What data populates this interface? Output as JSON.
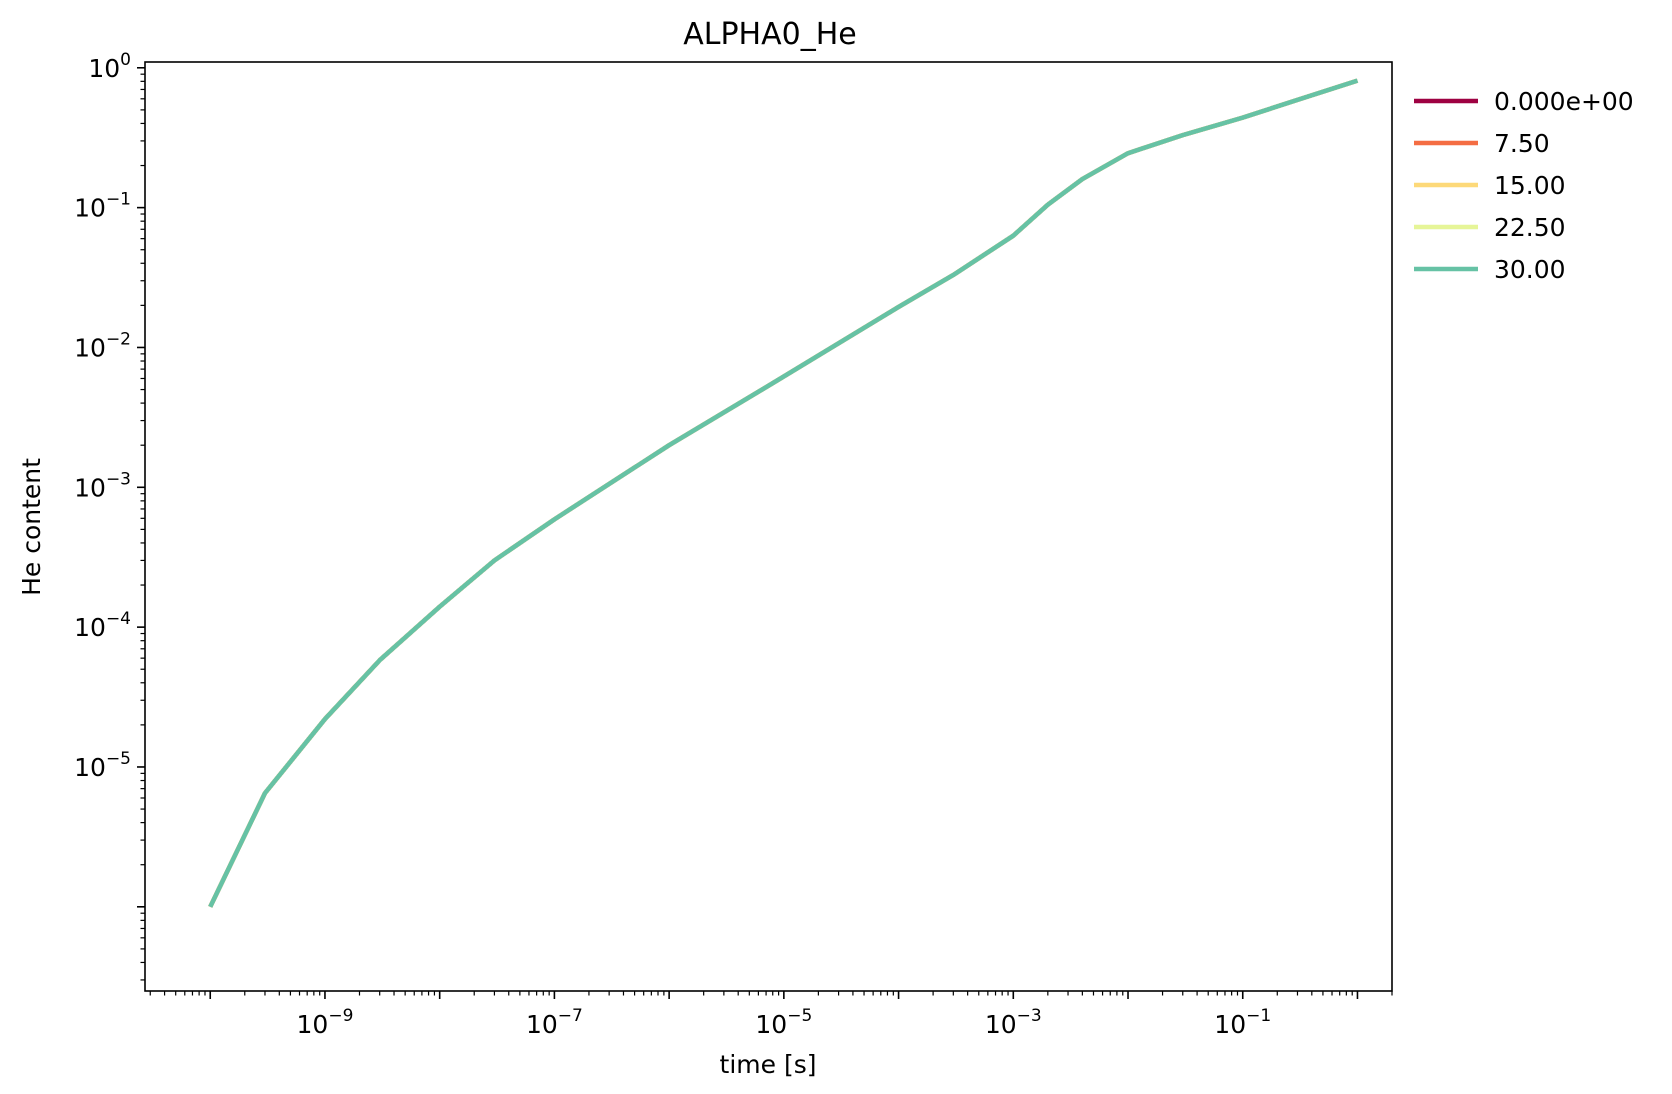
{
  "chart_data": {
    "type": "line",
    "title": "ALPHA0_He",
    "xlabel": "time [s]",
    "ylabel": "He content",
    "xscale": "log",
    "yscale": "log",
    "xlim": [
      2.7e-11,
      2.0
    ],
    "ylim": [
      2.5e-07,
      1.1
    ],
    "grid": false,
    "legend_position": "outside-right",
    "x_ticks": [
      {
        "value": 1e-09,
        "base": "10",
        "exp": "−9"
      },
      {
        "value": 1e-07,
        "base": "10",
        "exp": "−7"
      },
      {
        "value": 1e-05,
        "base": "10",
        "exp": "−5"
      },
      {
        "value": 0.001,
        "base": "10",
        "exp": "−3"
      },
      {
        "value": 0.1,
        "base": "10",
        "exp": "−1"
      }
    ],
    "y_ticks": [
      {
        "value": 1e-05,
        "base": "10",
        "exp": "−5"
      },
      {
        "value": 0.0001,
        "base": "10",
        "exp": "−4"
      },
      {
        "value": 0.001,
        "base": "10",
        "exp": "−3"
      },
      {
        "value": 0.01,
        "base": "10",
        "exp": "−2"
      },
      {
        "value": 0.1,
        "base": "10",
        "exp": "−1"
      },
      {
        "value": 1,
        "base": "10",
        "exp": "0"
      }
    ],
    "x": [
      1e-10,
      3e-10,
      1e-09,
      3e-09,
      1e-08,
      3e-08,
      1e-07,
      1e-06,
      1e-05,
      0.0001,
      0.0003,
      0.001,
      0.002,
      0.004,
      0.01,
      0.03,
      0.1,
      0.3,
      1.0
    ],
    "series": [
      {
        "name": "0.000e+00",
        "color": "#9e0142",
        "y": [
          1e-06,
          6.5e-06,
          2.2e-05,
          5.8e-05,
          0.00014,
          0.0003,
          0.00059,
          0.002,
          0.0062,
          0.0195,
          0.033,
          0.063,
          0.105,
          0.16,
          0.245,
          0.33,
          0.44,
          0.59,
          0.81
        ]
      },
      {
        "name": "7.50",
        "color": "#f46d43",
        "y": [
          1e-06,
          6.5e-06,
          2.2e-05,
          5.8e-05,
          0.00014,
          0.0003,
          0.00059,
          0.002,
          0.0062,
          0.0195,
          0.033,
          0.063,
          0.105,
          0.16,
          0.245,
          0.33,
          0.44,
          0.59,
          0.81
        ]
      },
      {
        "name": "15.00",
        "color": "#fdd979",
        "y": [
          1e-06,
          6.5e-06,
          2.2e-05,
          5.8e-05,
          0.00014,
          0.0003,
          0.00059,
          0.002,
          0.0062,
          0.0195,
          0.033,
          0.063,
          0.105,
          0.16,
          0.245,
          0.33,
          0.44,
          0.59,
          0.81
        ]
      },
      {
        "name": "22.50",
        "color": "#e6f598",
        "y": [
          1e-06,
          6.5e-06,
          2.2e-05,
          5.8e-05,
          0.00014,
          0.0003,
          0.00059,
          0.002,
          0.0062,
          0.0195,
          0.033,
          0.063,
          0.105,
          0.16,
          0.245,
          0.33,
          0.44,
          0.59,
          0.81
        ]
      },
      {
        "name": "30.00",
        "color": "#66c2a5",
        "y": [
          1e-06,
          6.5e-06,
          2.2e-05,
          5.8e-05,
          0.00014,
          0.0003,
          0.00059,
          0.002,
          0.0062,
          0.0195,
          0.033,
          0.063,
          0.105,
          0.16,
          0.245,
          0.33,
          0.44,
          0.59,
          0.81
        ]
      }
    ]
  }
}
